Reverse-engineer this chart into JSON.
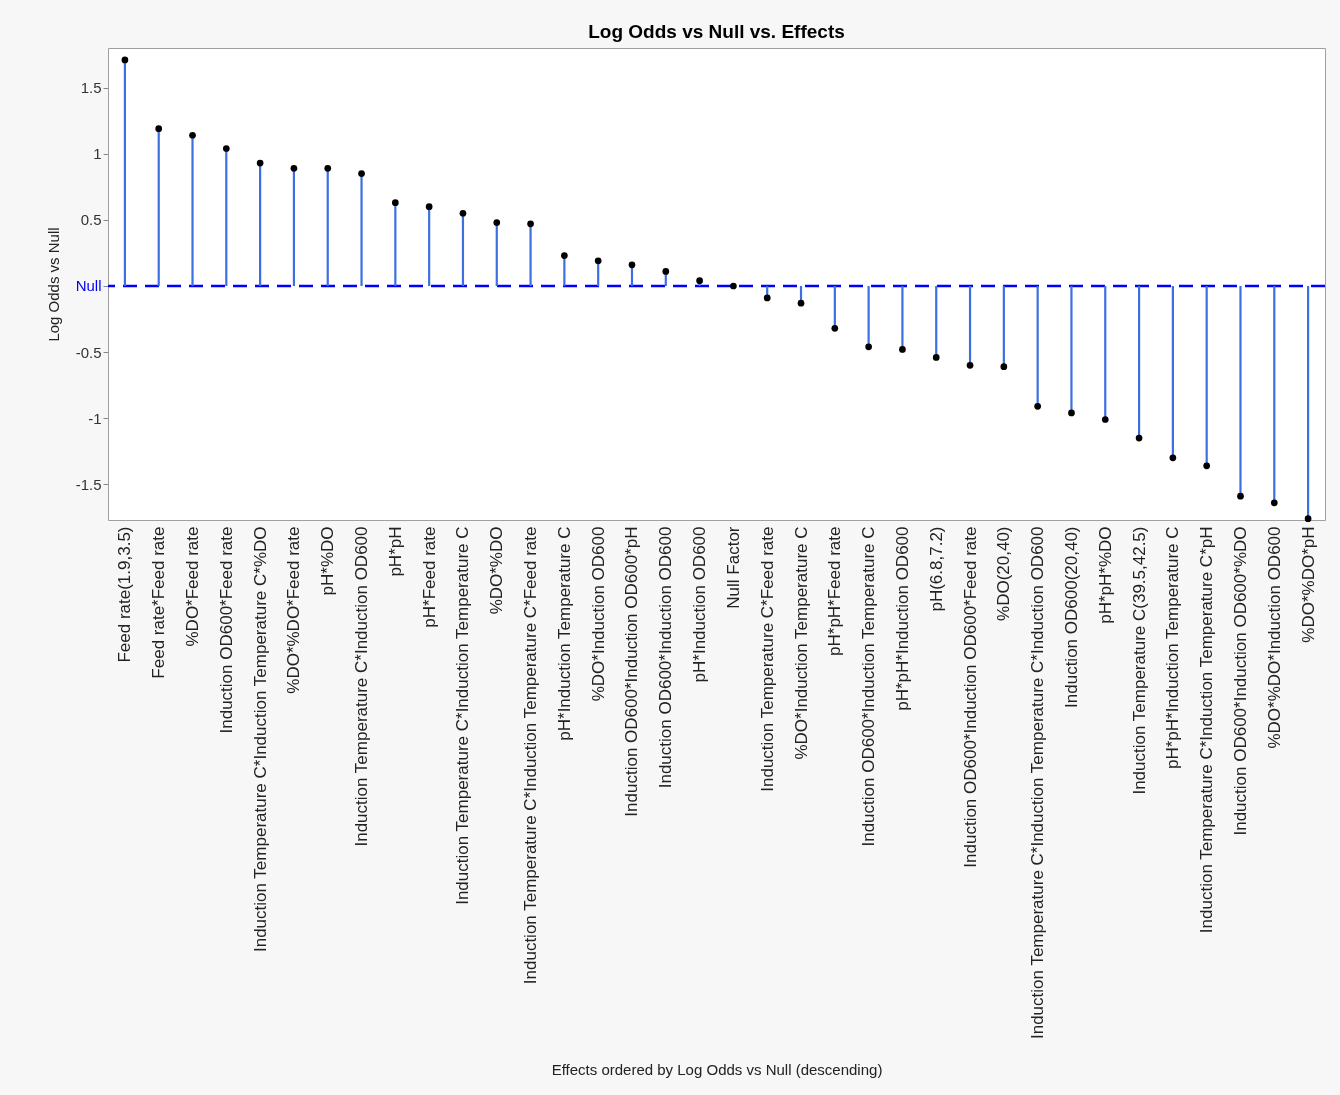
{
  "chart_data": {
    "type": "lollipop",
    "title": "Log Odds vs Null vs. Effects",
    "xlabel": "Effects ordered by Log Odds vs Null (descending)",
    "ylabel": "Log Odds vs Null",
    "categories": [
      "Feed rate(1.9,3.5)",
      "Feed rate*Feed rate",
      "%DO*Feed rate",
      "Induction OD600*Feed rate",
      "Induction Temperature C*Induction Temperature C*%DO",
      "%DO*%DO*Feed rate",
      "pH*%DO",
      "Induction Temperature C*Induction OD600",
      "pH*pH",
      "pH*Feed rate",
      "Induction Temperature C*Induction Temperature C",
      "%DO*%DO",
      "Induction Temperature C*Induction Temperature C*Feed rate",
      "pH*Induction Temperature C",
      "%DO*Induction OD600",
      "Induction OD600*Induction OD600*pH",
      "Induction OD600*Induction OD600",
      "pH*Induction OD600",
      "Null Factor",
      "Induction Temperature C*Feed rate",
      "%DO*Induction Temperature C",
      "pH*pH*Feed rate",
      "Induction OD600*Induction Temperature C",
      "pH*pH*Induction OD600",
      "pH(6.8,7.2)",
      "Induction OD600*Induction OD600*Feed rate",
      "%DO(20,40)",
      "Induction Temperature C*Induction Temperature C*Induction OD600",
      "Induction OD600(20,40)",
      "pH*pH*%DO",
      "Induction Temperature C(39.5,42.5)",
      "pH*pH*Induction Temperature C",
      "Induction Temperature C*Induction Temperature C*pH",
      "Induction OD600*Induction OD600*%DO",
      "%DO*%DO*Induction OD600",
      "%DO*%DO*pH"
    ],
    "series": [
      {
        "color": "#000000",
        "values": [
          1.71,
          1.19,
          1.14,
          1.04,
          0.93,
          0.89,
          0.89,
          0.85,
          0.63,
          0.6,
          0.55,
          0.48,
          0.47,
          0.23,
          0.19,
          0.16,
          0.11,
          0.04,
          0,
          -0.09,
          -0.13,
          -0.32,
          -0.46,
          -0.48,
          -0.54,
          -0.6,
          -0.61,
          -0.91,
          -0.96,
          -1.01,
          -1.15,
          -1.3,
          -1.36,
          -1.59,
          -1.64,
          -1.76
        ]
      }
    ],
    "ylim": [
      -1.77,
      1.8
    ],
    "yticks": [
      -1.5,
      -1,
      -0.5,
      {
        "value": 0,
        "label": "Null"
      },
      0.5,
      1,
      1.5
    ],
    "ref_lines": [
      {
        "axis": "y",
        "value": 0,
        "color": "#0000ff",
        "line_style": "dashed"
      }
    ],
    "marker": "circle"
  }
}
